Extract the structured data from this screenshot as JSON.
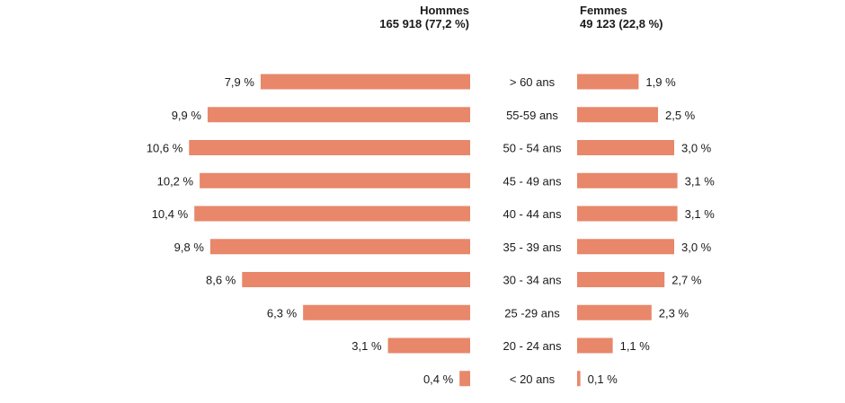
{
  "chart_data": {
    "type": "bar",
    "orientation": "horizontal",
    "layout": "population-pyramid",
    "bar_color": "#e8876a",
    "legend": "none",
    "grid": false,
    "categories": [
      "> 60 ans",
      "55-59 ans",
      "50 - 54 ans",
      "45 - 49 ans",
      "40 - 44 ans",
      "35 - 39 ans",
      "30 - 34 ans",
      "25 -29 ans",
      "20 - 24 ans",
      "< 20 ans"
    ],
    "series": [
      {
        "side": "left",
        "header_title": "Hommes",
        "header_total": "165 918 (77,2 %)",
        "values": [
          7.9,
          9.9,
          10.6,
          10.2,
          10.4,
          9.8,
          8.6,
          6.3,
          3.1,
          0.4
        ],
        "labels": [
          "7,9 %",
          "9,9 %",
          "10,6 %",
          "10,2 %",
          "10,4 %",
          "9,8 %",
          "8,6 %",
          "6,3 %",
          "3,1 %",
          "0,4 %"
        ]
      },
      {
        "side": "right",
        "header_title": "Femmes",
        "header_total": "49 123 (22,8 %)",
        "values": [
          1.9,
          2.5,
          3.0,
          3.1,
          3.1,
          3.0,
          2.7,
          2.3,
          1.1,
          0.1
        ],
        "labels": [
          "1,9 %",
          "2,5 %",
          "3,0 %",
          "3,1 %",
          "3,1 %",
          "3,0 %",
          "2,7 %",
          "2,3 %",
          "1,1 %",
          "0,1 %"
        ]
      }
    ]
  }
}
